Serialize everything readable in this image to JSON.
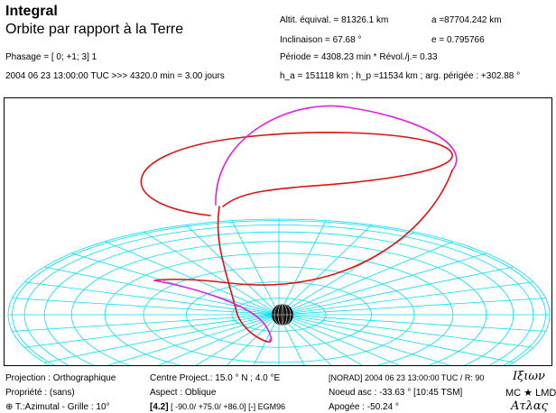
{
  "header": {
    "title": "Integral",
    "subtitle": "Orbite par rapport à la Terre",
    "phasage": "Phasage    = [ 0; +1;  3]   1",
    "date_line": "2004 06 23 13:00:00 TUC  >>>   4320.0 min  =   3.00 jours"
  },
  "orbit_params": {
    "altit": "Altit. équival. = 81326.1 km",
    "a": "a =87704.242 km",
    "inclinaison": "Inclinaison  =  67.68 °",
    "e": "e = 0.795766",
    "periode": "Période = 4308.23 min   * Révol./j.= 0.33",
    "h_line": "h_a = 151118 km ; h_p =11534 km ; arg. périgée : +302.88 °"
  },
  "footer": {
    "projection": "Projection : Orthographique",
    "propriete": "Propriété : (sans)",
    "azimutal": "⊕ T.:Azimutal - Grille  :  10°",
    "centre": "Centre Project.: 15.0 ° N ;   4.0 °E",
    "aspect": "Aspect : Oblique",
    "tag": "[4.2]",
    "angles": "[ -90.0/ +75.0/ +86.0] [-]   EGM96",
    "norad": "[NORAD] 2004 06 23 13:00:00 TUC / R:   90",
    "noeud": "Noeud asc :   -33.63 ° [10:45 TSM]",
    "apogee": "Apogée    :  -50.24 °",
    "logo_top": "Iξιων",
    "logo_mid": "MC ★ LMD",
    "logo_bottom": "Aτλας"
  },
  "colors": {
    "grid": "#00e0ee",
    "orbit_red": "#e01010",
    "orbit_magenta": "#e020e0",
    "earth": "#111111"
  }
}
